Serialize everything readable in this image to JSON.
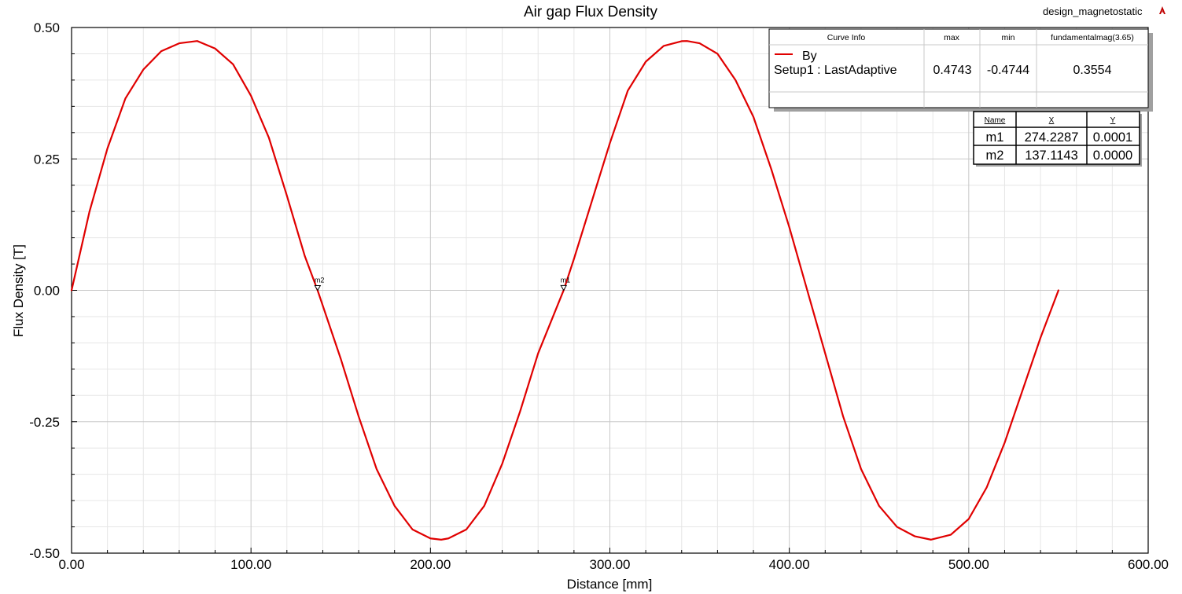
{
  "header": {
    "design_name": "design_magnetostatic"
  },
  "chart_data": {
    "type": "line",
    "title": "Air gap Flux Density",
    "xlabel": "Distance [mm]",
    "ylabel": "Flux Density [T]",
    "xlim": [
      0,
      600
    ],
    "ylim": [
      -0.5,
      0.5
    ],
    "xticks": [
      "0.00",
      "100.00",
      "200.00",
      "300.00",
      "400.00",
      "500.00",
      "600.00"
    ],
    "yticks": [
      "-0.50",
      "-0.25",
      "0.00",
      "0.25",
      "0.50"
    ],
    "grid": true,
    "legend_position": "top-right",
    "series": [
      {
        "name": "By",
        "color": "#e00000",
        "x": [
          0,
          10,
          20,
          30,
          40,
          50,
          60,
          70,
          80,
          90,
          100,
          110,
          120,
          130,
          137.11,
          150,
          160,
          170,
          180,
          190,
          200,
          206,
          210,
          220,
          230,
          240,
          250,
          260,
          274.23,
          280,
          290,
          300,
          310,
          320,
          330,
          340,
          343,
          350,
          360,
          370,
          380,
          390,
          400,
          410,
          420,
          430,
          440,
          450,
          460,
          470,
          479,
          490,
          500,
          510,
          520,
          530,
          540,
          550
        ],
        "y": [
          0.0,
          0.15,
          0.27,
          0.365,
          0.42,
          0.455,
          0.47,
          0.4743,
          0.46,
          0.43,
          0.37,
          0.29,
          0.18,
          0.065,
          0.0,
          -0.13,
          -0.24,
          -0.34,
          -0.41,
          -0.455,
          -0.472,
          -0.4744,
          -0.472,
          -0.455,
          -0.41,
          -0.33,
          -0.23,
          -0.12,
          0.0001,
          0.06,
          0.17,
          0.28,
          0.38,
          0.435,
          0.465,
          0.474,
          0.4743,
          0.47,
          0.45,
          0.4,
          0.33,
          0.23,
          0.12,
          0.0,
          -0.12,
          -0.24,
          -0.34,
          -0.41,
          -0.45,
          -0.468,
          -0.4744,
          -0.465,
          -0.435,
          -0.375,
          -0.29,
          -0.19,
          -0.09,
          0.0
        ]
      }
    ],
    "curve_info": {
      "headers": [
        "Curve Info",
        "max",
        "min",
        "fundamentalmag(3.65)"
      ],
      "trace_name": "By",
      "setup_name": "Setup1 : LastAdaptive",
      "max": "0.4743",
      "min": "-0.4744",
      "fundamental": "0.3554"
    },
    "markers": {
      "headers": [
        "Name",
        "X",
        "Y"
      ],
      "rows": [
        {
          "name": "m1",
          "x": "274.2287",
          "y": "0.0001"
        },
        {
          "name": "m2",
          "x": "137.1143",
          "y": "0.0000"
        }
      ],
      "points": [
        {
          "name": "m1",
          "x": 274.2287,
          "y": 0.0001
        },
        {
          "name": "m2",
          "x": 137.1143,
          "y": 0.0
        }
      ]
    }
  }
}
